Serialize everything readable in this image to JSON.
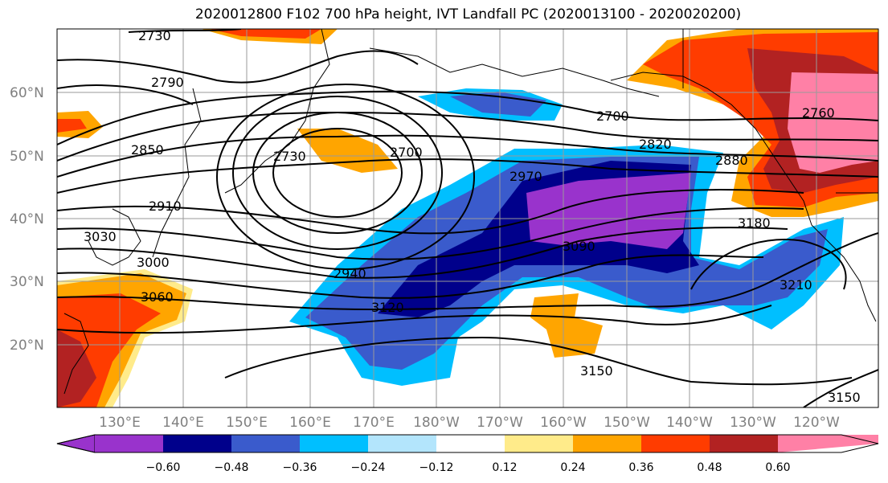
{
  "title": "2020012800 F102 700 hPa height, IVT Landfall PC (2020013100 - 2020020200)",
  "lat_labels": [
    "60°N",
    "50°N",
    "40°N",
    "30°N",
    "20°N"
  ],
  "lon_labels": [
    "130°E",
    "140°E",
    "150°E",
    "160°E",
    "170°E",
    "180°W",
    "170°W",
    "160°W",
    "150°W",
    "140°W",
    "130°W",
    "120°W"
  ],
  "contour_labels": [
    "2730",
    "2790",
    "2850",
    "2910",
    "3030",
    "3000",
    "3060",
    "2730",
    "2700",
    "2940",
    "3120",
    "2970",
    "3090",
    "2820",
    "2760",
    "2700",
    "2880",
    "3180",
    "3210",
    "3150",
    "3150"
  ],
  "colorbar": {
    "ticks": [
      "−0.60",
      "−0.48",
      "−0.36",
      "−0.24",
      "−0.12",
      "0.12",
      "0.24",
      "0.36",
      "0.48",
      "0.60"
    ],
    "colors": [
      "#9933cc",
      "#00008b",
      "#3a5bcc",
      "#00bfff",
      "#b3e5fc",
      "#ffffff",
      "#ffeb8a",
      "#ffa500",
      "#ff3c00",
      "#b22222",
      "#ff80a6"
    ]
  }
}
